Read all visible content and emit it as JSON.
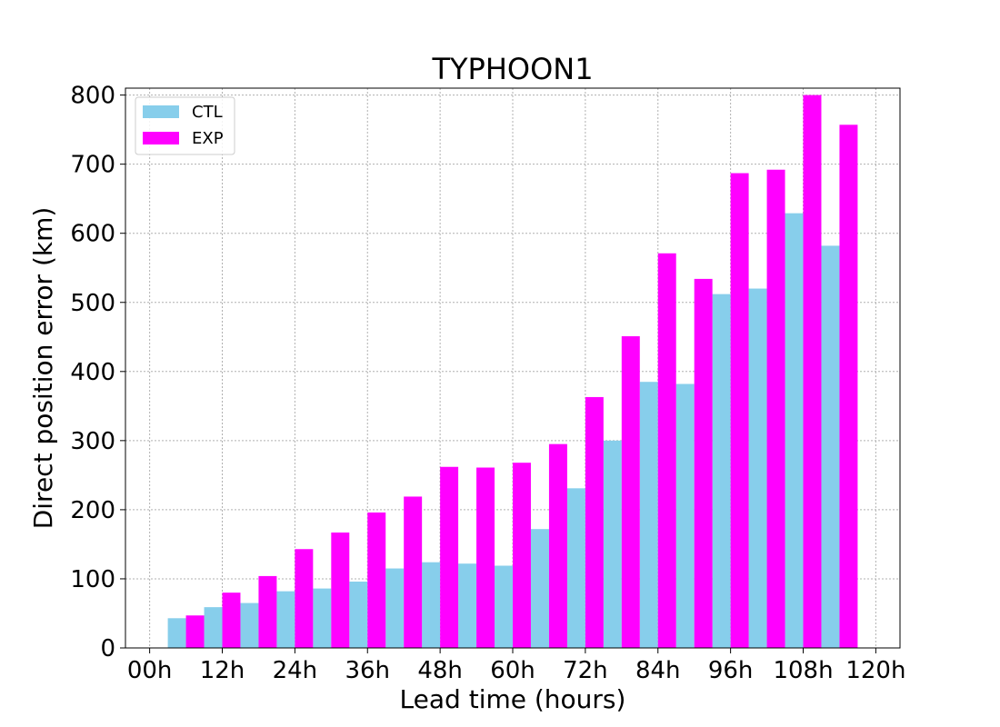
{
  "chart_data": {
    "type": "bar",
    "title": "TYPHOON1",
    "xlabel": "Lead time (hours)",
    "ylabel": "Direct position error (km)",
    "ylim": [
      0,
      810
    ],
    "xlim": [
      -4,
      124
    ],
    "yticks": [
      0,
      100,
      200,
      300,
      400,
      500,
      600,
      700,
      800
    ],
    "xticks": [
      {
        "value": 0,
        "label": "00h"
      },
      {
        "value": 12,
        "label": "12h"
      },
      {
        "value": 24,
        "label": "24h"
      },
      {
        "value": 36,
        "label": "36h"
      },
      {
        "value": 48,
        "label": "48h"
      },
      {
        "value": 60,
        "label": "60h"
      },
      {
        "value": 72,
        "label": "72h"
      },
      {
        "value": 84,
        "label": "84h"
      },
      {
        "value": 96,
        "label": "96h"
      },
      {
        "value": 108,
        "label": "108h"
      },
      {
        "value": 120,
        "label": "120h"
      }
    ],
    "x": [
      6,
      12,
      18,
      24,
      30,
      36,
      42,
      48,
      54,
      60,
      66,
      72,
      78,
      84,
      90,
      96,
      102,
      108,
      114
    ],
    "bar_width_hours": 3,
    "grid": true,
    "legend_position": "top-left",
    "series": [
      {
        "name": "CTL",
        "color": "#87ceeb",
        "values": [
          43,
          59,
          65,
          82,
          86,
          96,
          115,
          124,
          122,
          119,
          172,
          231,
          300,
          385,
          382,
          512,
          520,
          629,
          582
        ]
      },
      {
        "name": "EXP",
        "color": "#ff00ff",
        "values": [
          47,
          80,
          104,
          143,
          167,
          196,
          219,
          262,
          261,
          268,
          295,
          363,
          451,
          571,
          534,
          687,
          692,
          800,
          757
        ]
      }
    ]
  }
}
